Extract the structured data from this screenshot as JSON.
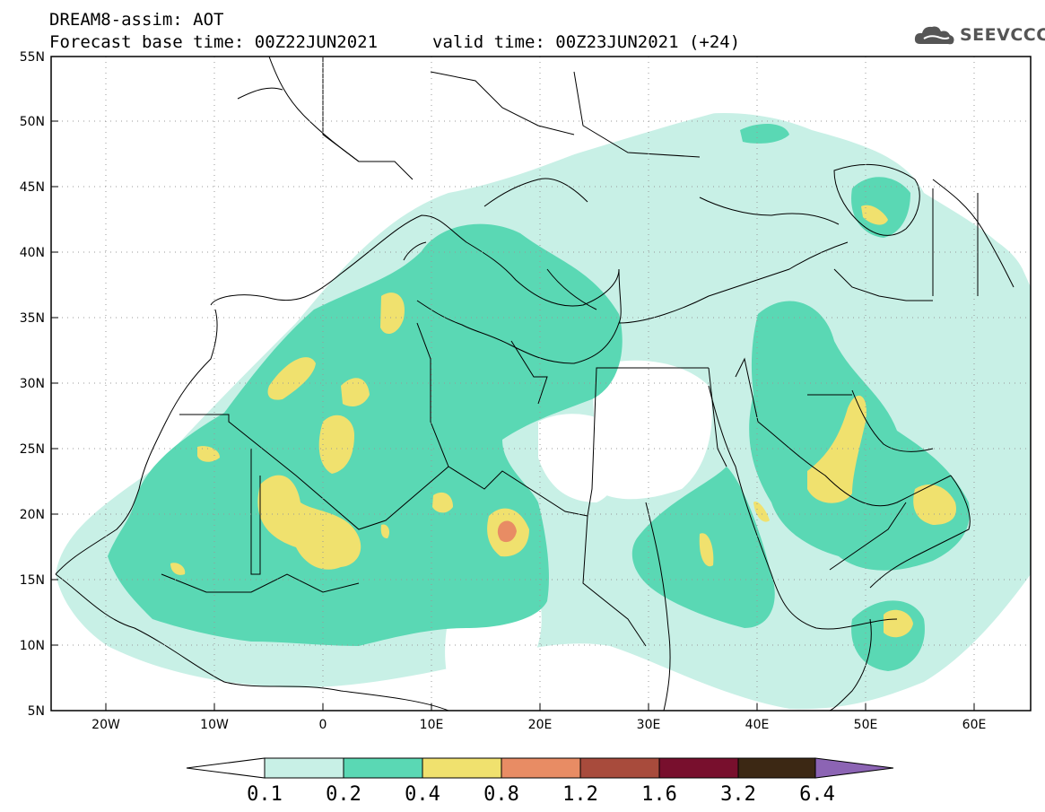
{
  "header": {
    "title": "DREAM8-assim: AOT",
    "base_time": "Forecast base time: 00Z22JUN2021",
    "valid_time": "valid time: 00Z23JUN2021 (+24)",
    "logo_text": "SEEVCCC",
    "logo_icon": "cloud-icon"
  },
  "map": {
    "variable": "AOT",
    "lon_range": [
      -25,
      65
    ],
    "lat_range": [
      5,
      55
    ],
    "lat_ticks": [
      "55N",
      "50N",
      "45N",
      "40N",
      "35N",
      "30N",
      "25N",
      "20N",
      "15N",
      "10N",
      "5N"
    ],
    "lon_ticks": [
      "20W",
      "10W",
      "0",
      "10E",
      "20E",
      "30E",
      "40E",
      "50E",
      "60E"
    ],
    "gridlines": "dotted"
  },
  "colorbar": {
    "labels": [
      "0.1",
      "0.2",
      "0.4",
      "0.8",
      "1.2",
      "1.6",
      "3.2",
      "6.4"
    ],
    "colors": [
      "#ffffff",
      "#c8f0e6",
      "#5ad8b4",
      "#f0e16e",
      "#e88c64",
      "#a84b3c",
      "#780f2d",
      "#3c2814",
      "#8c64b4"
    ]
  }
}
